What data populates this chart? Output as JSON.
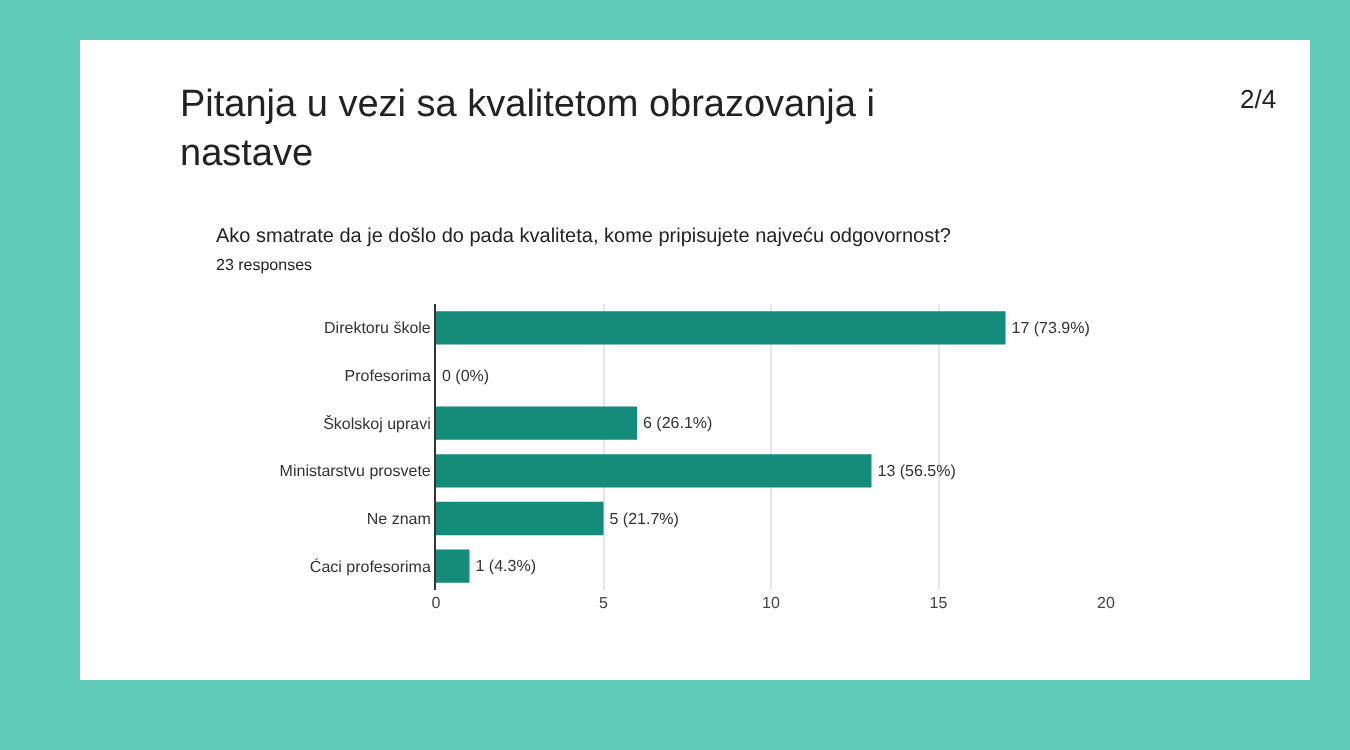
{
  "chart_data": {
    "type": "bar",
    "orientation": "horizontal",
    "title": "Pitanja u vezi sa kvalitetom obrazovanja i nastave",
    "subtitle": "Ako smatrate da je došlo do pada kvaliteta, kome pripisujete najveću odgovornost?",
    "annotations": [
      "23 responses",
      "2/4"
    ],
    "categories": [
      "Direktoru škole",
      "Profesorima",
      "Školskoj upravi",
      "Ministarstvu prosvete",
      "Ne znam",
      "Ćaci profesorima"
    ],
    "values": [
      17,
      0,
      6,
      13,
      5,
      1
    ],
    "value_labels": [
      "17 (73.9%)",
      "0 (0%)",
      "6 (26.1%)",
      "13 (56.5%)",
      "5 (21.7%)",
      "1 (4.3%)"
    ],
    "color": "#138d7a",
    "xlim": [
      0,
      20
    ],
    "xticks": [
      0,
      5,
      10,
      15,
      20
    ],
    "grid": "x",
    "legend": false
  }
}
